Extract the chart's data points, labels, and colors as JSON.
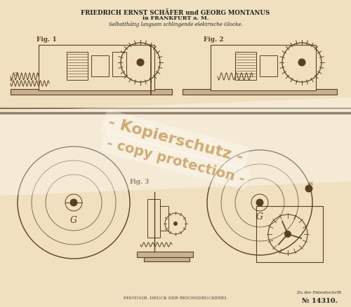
{
  "background_color": "#f5ead8",
  "title_line1": "FRIEDRICH ERNST SCHÄFER und GEORG MONTANUS",
  "title_line2": "in FRANKFURT a. M.",
  "subtitle": "Selbstthätig langsam schlingende elektrische Glocke.",
  "fig_labels": [
    "Fig. 1",
    "Fig. 2",
    "Fig. 3"
  ],
  "watermark_line1": "- Kopierschutz -",
  "watermark_line2": "- copy protection -",
  "patent_num": "№ 14310.",
  "patent_label": "Zu der Patentschrift",
  "bottom_text": "PHOTOGR. DRUCK DER REICHSDRUCKEREI.",
  "page_bg": "#f0e0c0",
  "line_color": "#5a4020",
  "watermark_color": "#c8a060",
  "fig_width": 5.0,
  "fig_height": 4.39
}
